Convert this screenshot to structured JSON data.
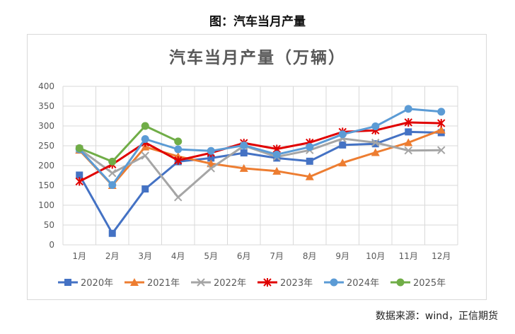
{
  "caption": "图：汽车当月产量",
  "source": "数据来源：wind，正信期货",
  "chart_data": {
    "type": "line",
    "title": "汽车当月产量（万辆）",
    "xlabel": "",
    "ylabel": "",
    "categories": [
      "1月",
      "2月",
      "3月",
      "4月",
      "5月",
      "6月",
      "7月",
      "8月",
      "9月",
      "10月",
      "11月",
      "12月"
    ],
    "ylim": [
      0,
      400
    ],
    "yticks": [
      0,
      50,
      100,
      150,
      200,
      250,
      300,
      350,
      400
    ],
    "grid": true,
    "legend": "bottom",
    "series": [
      {
        "name": "2020年",
        "color": "#4472C4",
        "marker": "square",
        "values": [
          176,
          29,
          141,
          210,
          219,
          232,
          219,
          211,
          252,
          255,
          285,
          283
        ]
      },
      {
        "name": "2021年",
        "color": "#ED7D31",
        "marker": "triangle",
        "values": [
          239,
          150,
          247,
          223,
          205,
          193,
          186,
          172,
          207,
          233,
          258,
          290
        ]
      },
      {
        "name": "2022年",
        "color": "#A5A5A5",
        "marker": "x",
        "values": [
          242,
          181,
          225,
          120,
          193,
          250,
          222,
          239,
          268,
          258,
          238,
          239
        ]
      },
      {
        "name": "2023年",
        "color": "#E00000",
        "marker": "star",
        "values": [
          160,
          203,
          258,
          213,
          232,
          257,
          242,
          258,
          285,
          289,
          309,
          307
        ]
      },
      {
        "name": "2024年",
        "color": "#5B9BD5",
        "marker": "circle",
        "values": [
          241,
          151,
          267,
          241,
          237,
          251,
          228,
          247,
          279,
          299,
          343,
          336
        ]
      },
      {
        "name": "2025年",
        "color": "#70AD47",
        "marker": "circle",
        "values": [
          244,
          210,
          300,
          261,
          null,
          null,
          null,
          null,
          null,
          null,
          null,
          null
        ]
      }
    ]
  }
}
